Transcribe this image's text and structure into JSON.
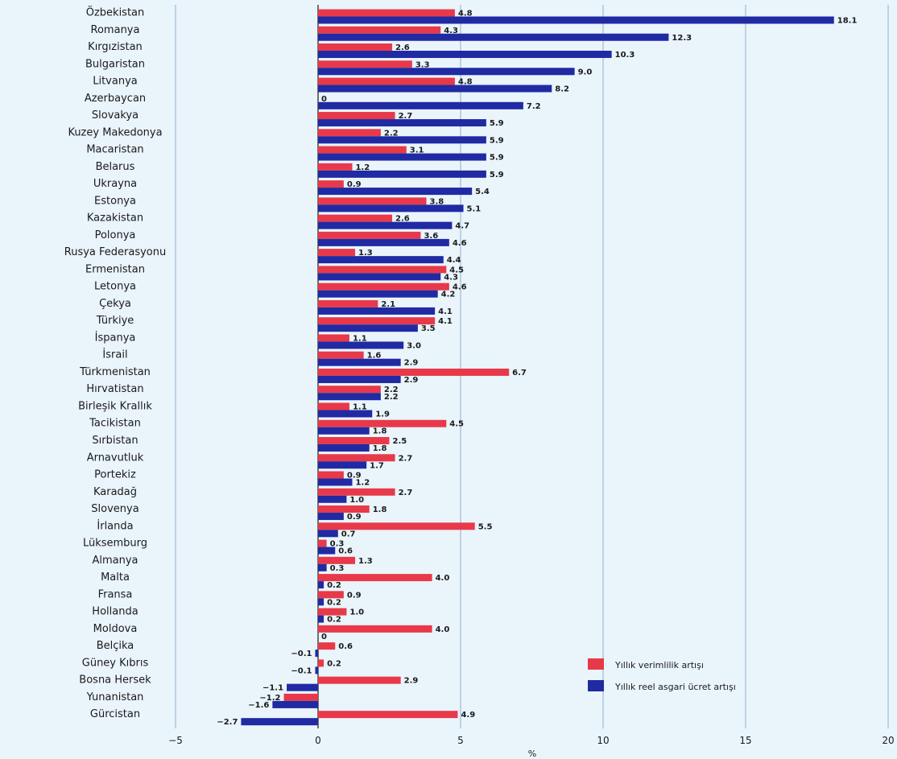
{
  "chart_data": {
    "type": "bar",
    "orientation": "horizontal",
    "xlabel": "%",
    "xlim": [
      -5,
      20
    ],
    "xticks": [
      -5,
      0,
      5,
      10,
      15,
      20
    ],
    "xtick_labels": [
      "−5",
      "0",
      "5",
      "10",
      "15",
      "20"
    ],
    "grid": "vertical",
    "legend_position": "bottom-right",
    "categories": [
      "Özbekistan",
      "Romanya",
      "Kırgızistan",
      "Bulgaristan",
      "Litvanya",
      "Azerbaycan",
      "Slovakya",
      "Kuzey Makedonya",
      "Macaristan",
      "Belarus",
      "Ukrayna",
      "Estonya",
      "Kazakistan",
      "Polonya",
      "Rusya Federasyonu",
      "Ermenistan",
      "Letonya",
      "Çekya",
      "Türkiye",
      "İspanya",
      "İsrail",
      "Türkmenistan",
      "Hırvatistan",
      "Birleşik Krallık",
      "Tacikistan",
      "Sırbistan",
      "Arnavutluk",
      "Portekiz",
      "Karadağ",
      "Slovenya",
      "İrlanda",
      "Lüksemburg",
      "Almanya",
      "Malta",
      "Fransa",
      "Hollanda",
      "Moldova",
      "Belçika",
      "Güney Kıbrıs",
      "Bosna Hersek",
      "Yunanistan",
      "Gürcistan"
    ],
    "series": [
      {
        "name": "Yıllık verimlilik artışı",
        "color": "#e8394a",
        "values": [
          4.8,
          4.3,
          2.6,
          3.3,
          4.8,
          0,
          2.7,
          2.2,
          3.1,
          1.2,
          0.9,
          3.8,
          2.6,
          3.6,
          1.3,
          4.5,
          4.6,
          2.1,
          4.1,
          1.1,
          1.6,
          6.7,
          2.2,
          1.1,
          4.5,
          2.5,
          2.7,
          0.9,
          2.7,
          1.8,
          5.5,
          0.3,
          1.3,
          4.0,
          0.9,
          1.0,
          4.0,
          0.6,
          0.2,
          2.9,
          -1.2,
          4.9
        ],
        "labels": [
          "4.8",
          "4.3",
          "2.6",
          "3.3",
          "4.8",
          "0",
          "2.7",
          "2.2",
          "3.1",
          "1.2",
          "0.9",
          "3.8",
          "2.6",
          "3.6",
          "1.3",
          "4.5",
          "4.6",
          "2.1",
          "4.1",
          "1.1",
          "1.6",
          "6.7",
          "2.2",
          "1.1",
          "4.5",
          "2.5",
          "2.7",
          "0.9",
          "2.7",
          "1.8",
          "5.5",
          "0.3",
          "1.3",
          "4.0",
          "0.9",
          "1.0",
          "4.0",
          "0.6",
          "0.2",
          "2.9",
          "−1.2",
          "4.9"
        ]
      },
      {
        "name": "Yıllık reel asgari ücret artışı",
        "color": "#1f2aa3",
        "values": [
          18.1,
          12.3,
          10.3,
          9.0,
          8.2,
          7.2,
          5.9,
          5.9,
          5.9,
          5.9,
          5.4,
          5.1,
          4.7,
          4.6,
          4.4,
          4.3,
          4.2,
          4.1,
          3.5,
          3.0,
          2.9,
          2.9,
          2.2,
          1.9,
          1.8,
          1.8,
          1.7,
          1.2,
          1.0,
          0.9,
          0.7,
          0.6,
          0.3,
          0.2,
          0.2,
          0.2,
          0,
          -0.1,
          -0.1,
          -1.1,
          -1.6,
          -2.7
        ],
        "labels": [
          "18.1",
          "12.3",
          "10.3",
          "9.0",
          "8.2",
          "7.2",
          "5.9",
          "5.9",
          "5.9",
          "5.9",
          "5.4",
          "5.1",
          "4.7",
          "4.6",
          "4.4",
          "4.3",
          "4.2",
          "4.1",
          "3.5",
          "3.0",
          "2.9",
          "2.9",
          "2.2",
          "1.9",
          "1.8",
          "1.8",
          "1.7",
          "1.2",
          "1.0",
          "0.9",
          "0.7",
          "0.6",
          "0.3",
          "0.2",
          "0.2",
          "0.2",
          "0",
          "−0.1",
          "−0.1",
          "−1.1",
          "−1.6",
          "−2.7"
        ]
      }
    ]
  }
}
